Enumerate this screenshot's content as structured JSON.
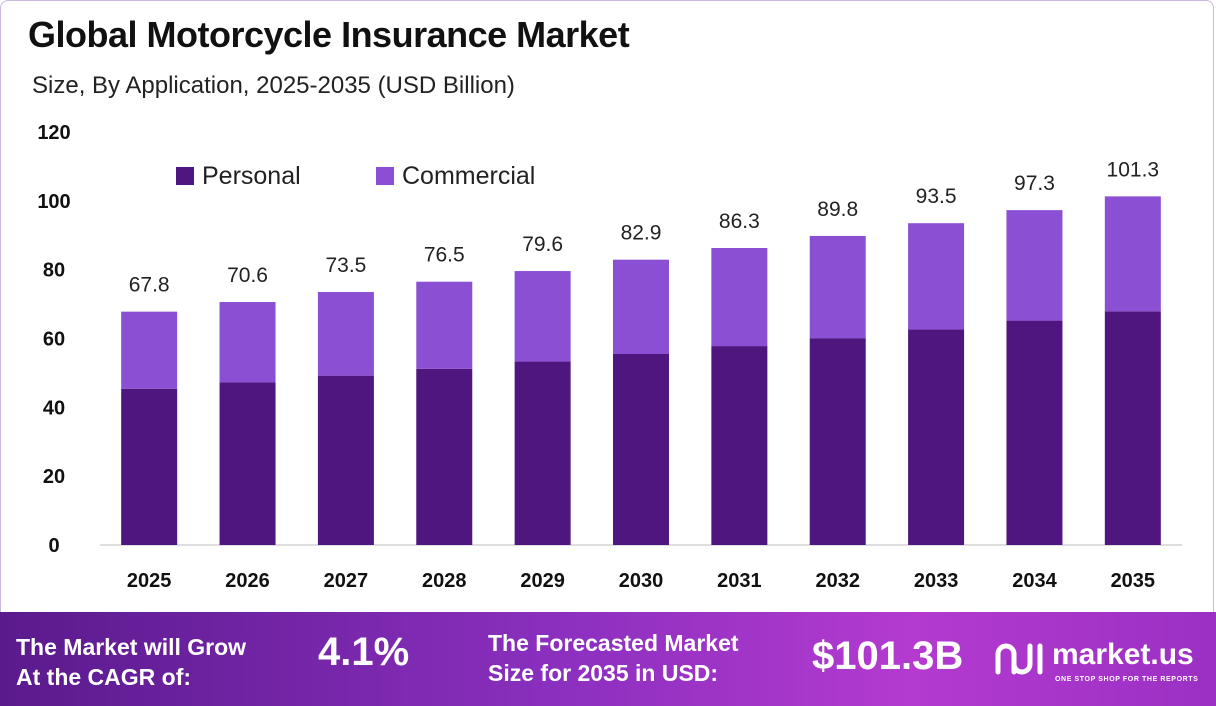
{
  "header": {
    "title": "Global Motorcycle Insurance Market",
    "subtitle": "Size, By Application, 2025-2035 (USD Billion)"
  },
  "chart_data": {
    "type": "bar",
    "stacked": true,
    "categories": [
      "2025",
      "2026",
      "2027",
      "2028",
      "2029",
      "2030",
      "2031",
      "2032",
      "2033",
      "2034",
      "2035"
    ],
    "series": [
      {
        "name": "Personal",
        "color": "#4f1680",
        "values": [
          45.4,
          47.3,
          49.2,
          51.2,
          53.3,
          55.5,
          57.8,
          60.1,
          62.6,
          65.2,
          67.9
        ]
      },
      {
        "name": "Commercial",
        "color": "#8b4fd3",
        "values": [
          22.4,
          23.3,
          24.3,
          25.3,
          26.3,
          27.4,
          28.5,
          29.7,
          30.9,
          32.1,
          33.4
        ]
      }
    ],
    "totals": [
      "67.8",
      "70.6",
      "73.5",
      "76.5",
      "79.6",
      "82.9",
      "86.3",
      "89.8",
      "93.5",
      "97.3",
      "101.3"
    ],
    "ylim": [
      0,
      120
    ],
    "yticks": [
      "0",
      "20",
      "40",
      "60",
      "80",
      "100",
      "120"
    ],
    "legend_position": "top-left",
    "grid": false
  },
  "footer": {
    "cagr_label_line1": "The Market will Grow",
    "cagr_label_line2": "At the CAGR of:",
    "cagr_value": "4.1%",
    "forecast_label_line1": "The Forecasted Market",
    "forecast_label_line2": "Size for 2035 in USD:",
    "forecast_value": "$101.3B",
    "logo_text": "market.us",
    "logo_tagline": "ONE STOP SHOP FOR THE REPORTS",
    "logo_icon": "market-us-logo-icon"
  }
}
